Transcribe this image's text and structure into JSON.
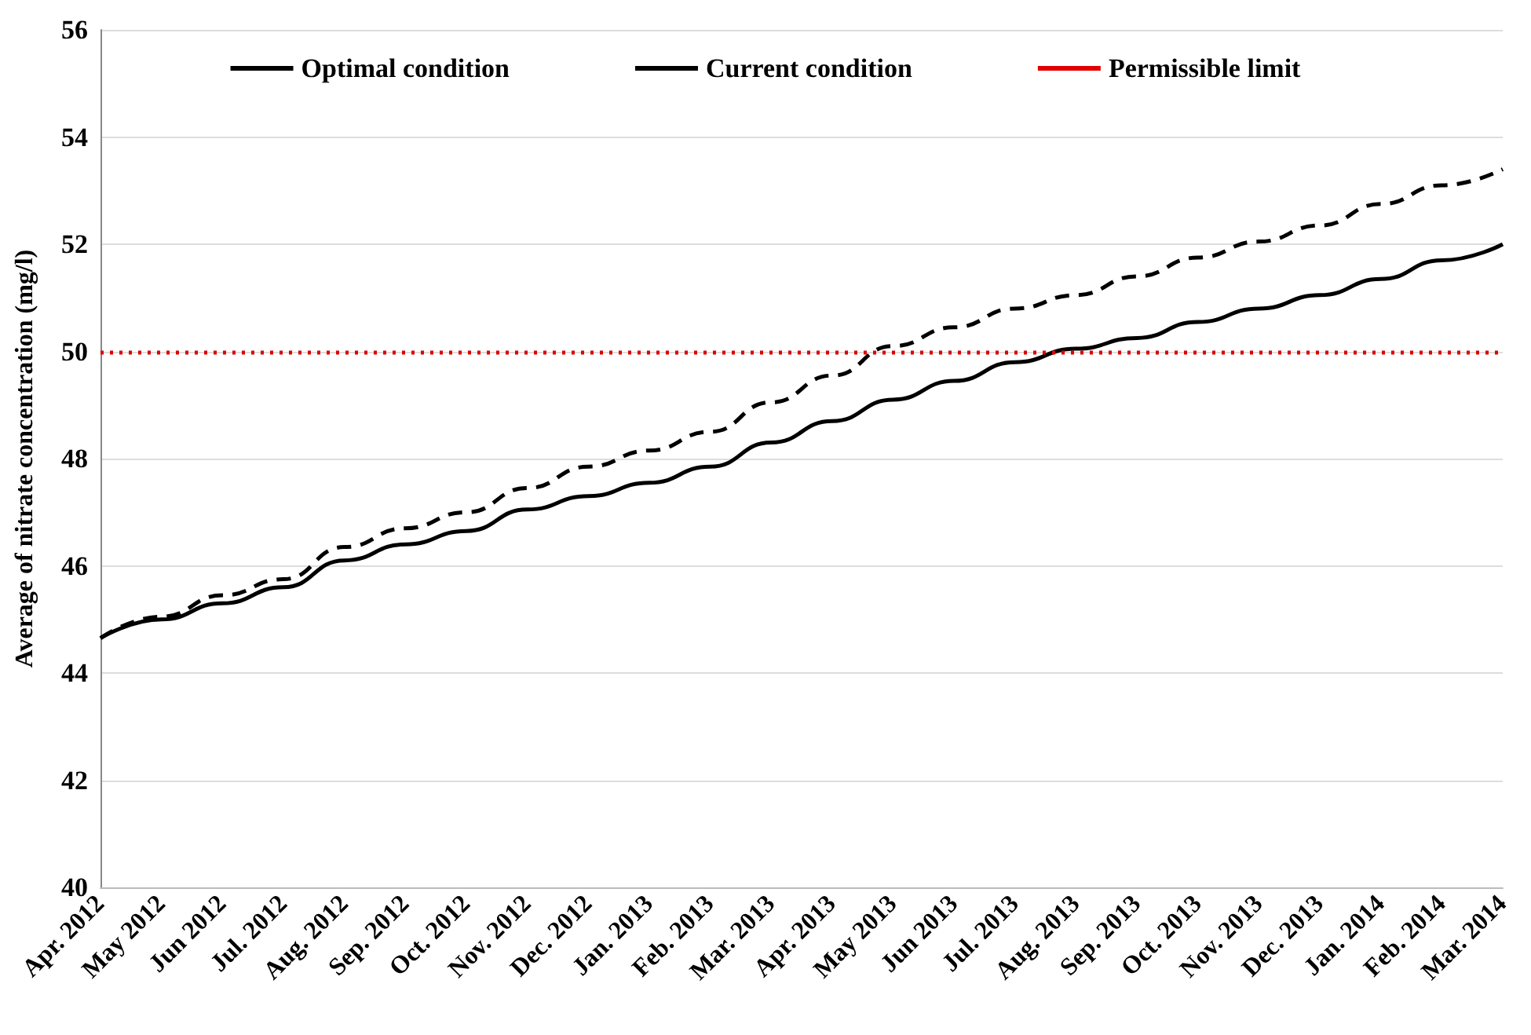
{
  "chart_data": {
    "type": "line",
    "ylabel": "Average of nitrate concentration (mg/l)",
    "categories": [
      "Apr. 2012",
      "May 2012",
      "Jun 2012",
      "Jul. 2012",
      "Aug. 2012",
      "Sep. 2012",
      "Oct. 2012",
      "Nov. 2012",
      "Dec. 2012",
      "Jan. 2013",
      "Feb. 2013",
      "Mar. 2013",
      "Apr. 2013",
      "May 2013",
      "Jun 2013",
      "Jul. 2013",
      "Aug. 2013",
      "Sep. 2013",
      "Oct. 2013",
      "Nov. 2013",
      "Dec. 2013",
      "Jan. 2014",
      "Feb. 2014",
      "Mar. 2014"
    ],
    "series": [
      {
        "name": "Optimal condition",
        "color": "#000000",
        "line_style": "solid",
        "values": [
          44.65,
          45.0,
          45.3,
          45.6,
          46.1,
          46.4,
          46.65,
          47.05,
          47.3,
          47.55,
          47.85,
          48.3,
          48.7,
          49.1,
          49.45,
          49.8,
          50.05,
          50.25,
          50.55,
          50.8,
          51.05,
          51.35,
          51.7,
          52.0
        ]
      },
      {
        "name": "Current condition",
        "color": "#000000",
        "line_style": "dashed",
        "values": [
          44.65,
          45.05,
          45.45,
          45.75,
          46.35,
          46.7,
          47.0,
          47.45,
          47.85,
          48.15,
          48.5,
          49.05,
          49.55,
          50.1,
          50.45,
          50.8,
          51.05,
          51.4,
          51.75,
          52.05,
          52.35,
          52.75,
          53.1,
          53.4
        ]
      }
    ],
    "ref_lines": [
      {
        "axis": "y",
        "value": 50,
        "label": "Permissible limit",
        "color": "#e00000",
        "line_style": "dotted"
      }
    ],
    "ylim": [
      40,
      56
    ],
    "yticks": [
      40,
      42,
      44,
      46,
      48,
      50,
      52,
      54,
      56
    ],
    "grid": "y",
    "legend": "top",
    "marker": "none"
  }
}
